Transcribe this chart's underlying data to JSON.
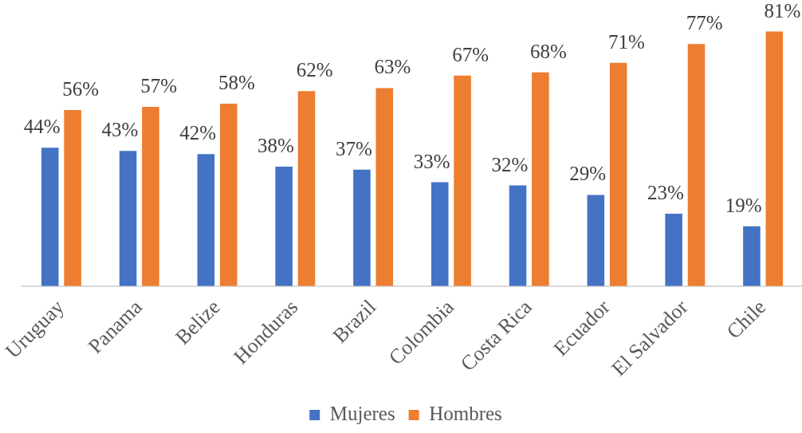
{
  "chart_data": {
    "type": "bar",
    "categories": [
      "Uruguay",
      "Panama",
      "Belize",
      "Honduras",
      "Brazil",
      "Colombia",
      "Costa Rica",
      "Ecuador",
      "El Salvador",
      "Chile"
    ],
    "series": [
      {
        "name": "Mujeres",
        "color": "#4472c4",
        "values": [
          44,
          43,
          42,
          38,
          37,
          33,
          32,
          29,
          23,
          19
        ],
        "value_labels": [
          "44%",
          "43%",
          "42%",
          "38%",
          "37%",
          "33%",
          "32%",
          "29%",
          "23%",
          "19%"
        ]
      },
      {
        "name": "Hombres",
        "color": "#ed7d31",
        "values": [
          56,
          57,
          58,
          62,
          63,
          67,
          68,
          71,
          77,
          81
        ],
        "value_labels": [
          "56%",
          "57%",
          "58%",
          "62%",
          "63%",
          "67%",
          "68%",
          "71%",
          "77%",
          "81%"
        ]
      }
    ],
    "tick_labels": "x",
    "legend": "bottom"
  }
}
